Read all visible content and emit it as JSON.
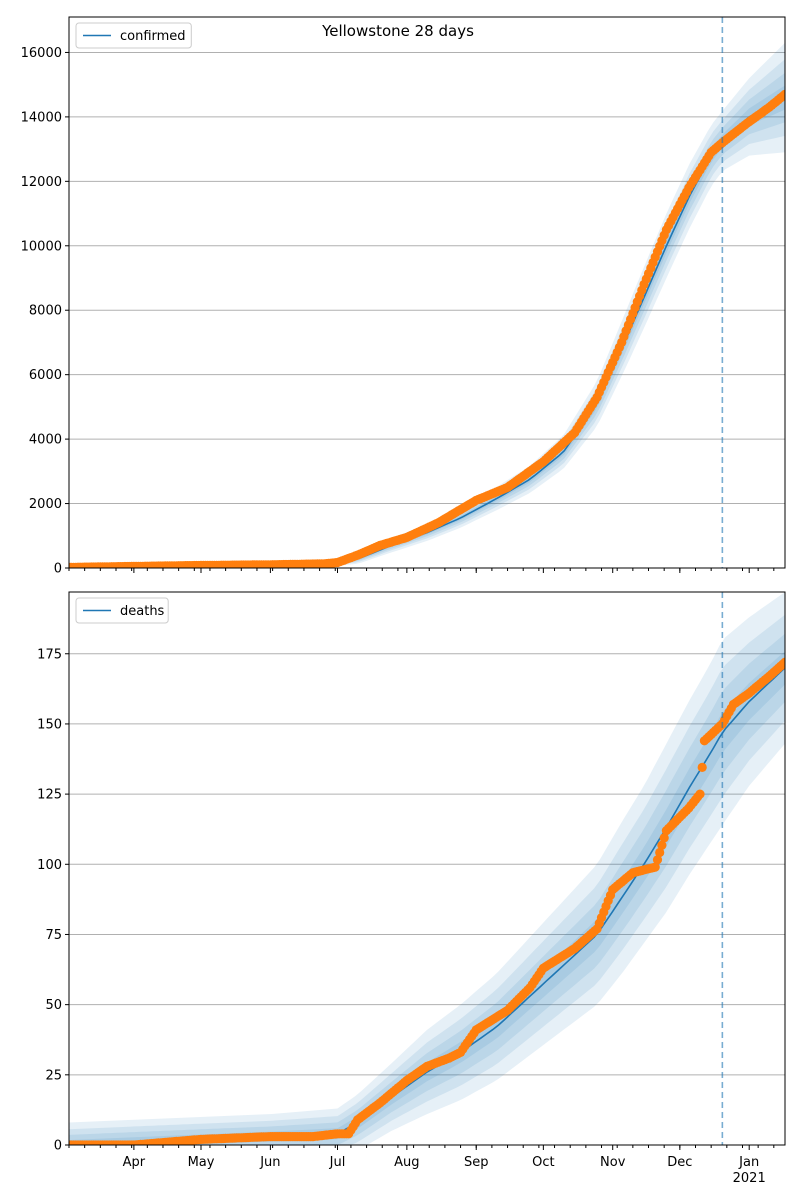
{
  "figure": {
    "title": "Yellowstone 28 days"
  },
  "colors": {
    "model": "#1f77b4",
    "observed": "#ff7f0e",
    "band": "#1f77b4",
    "grid": "#b0b0b0"
  },
  "x_axis": {
    "month_labels": [
      "Apr",
      "May",
      "Jun",
      "Jul",
      "Aug",
      "Sep",
      "Oct",
      "Nov",
      "Dec",
      "Jan"
    ],
    "year_label": "2021"
  },
  "chart_data": [
    {
      "type": "line",
      "title": "Yellowstone 28 days",
      "legend": {
        "label": "confirmed",
        "placement": "upper-left"
      },
      "grid": true,
      "xlim": [
        "2020-03-03",
        "2021-01-17"
      ],
      "ylim": [
        0,
        17100
      ],
      "yticks": [
        0,
        2000,
        4000,
        6000,
        8000,
        10000,
        12000,
        14000,
        16000
      ],
      "forecast_start": "2020-12-20",
      "model_series": {
        "name": "confirmed",
        "x": [
          "2020-03-03",
          "2020-04-01",
          "2020-05-01",
          "2020-06-01",
          "2020-06-25",
          "2020-07-10",
          "2020-07-25",
          "2020-08-10",
          "2020-08-25",
          "2020-09-10",
          "2020-09-25",
          "2020-10-10",
          "2020-10-25",
          "2020-11-05",
          "2020-11-15",
          "2020-11-25",
          "2020-12-05",
          "2020-12-15",
          "2020-12-20",
          "2021-01-01",
          "2021-01-17"
        ],
        "y": [
          10,
          40,
          80,
          100,
          130,
          280,
          700,
          1100,
          1550,
          2150,
          2750,
          3600,
          5100,
          6800,
          8400,
          10000,
          11500,
          12800,
          13250,
          14000,
          14600
        ],
        "band_width": [
          50,
          60,
          70,
          80,
          100,
          150,
          220,
          260,
          300,
          360,
          420,
          520,
          700,
          850,
          950,
          1000,
          1000,
          950,
          930,
          1200,
          1700
        ]
      },
      "observed": {
        "x": [
          "2020-03-03",
          "2020-04-01",
          "2020-05-01",
          "2020-06-01",
          "2020-06-25",
          "2020-07-01",
          "2020-07-10",
          "2020-07-20",
          "2020-08-01",
          "2020-08-15",
          "2020-09-01",
          "2020-09-15",
          "2020-10-01",
          "2020-10-15",
          "2020-10-25",
          "2020-11-05",
          "2020-11-15",
          "2020-11-25",
          "2020-12-05",
          "2020-12-15",
          "2020-12-20",
          "2020-12-31",
          "2021-01-10",
          "2021-01-17"
        ],
        "y": [
          20,
          50,
          80,
          100,
          130,
          170,
          400,
          700,
          950,
          1400,
          2100,
          2500,
          3300,
          4200,
          5300,
          7000,
          8800,
          10500,
          11800,
          12900,
          13200,
          13800,
          14300,
          14700
        ]
      }
    },
    {
      "type": "line",
      "title": "",
      "legend": {
        "label": "deaths",
        "placement": "upper-left"
      },
      "grid": true,
      "xlim": [
        "2020-03-03",
        "2021-01-17"
      ],
      "ylim": [
        0,
        197
      ],
      "yticks": [
        0,
        25,
        50,
        75,
        100,
        125,
        150,
        175
      ],
      "forecast_start": "2020-12-20",
      "model_series": {
        "name": "deaths",
        "x": [
          "2020-03-03",
          "2020-04-01",
          "2020-05-01",
          "2020-06-01",
          "2020-07-01",
          "2020-07-10",
          "2020-07-25",
          "2020-08-10",
          "2020-08-25",
          "2020-09-10",
          "2020-09-25",
          "2020-10-10",
          "2020-10-25",
          "2020-11-05",
          "2020-11-15",
          "2020-11-25",
          "2020-12-05",
          "2020-12-15",
          "2020-12-20",
          "2021-01-01",
          "2021-01-17"
        ],
        "y": [
          0,
          1,
          2,
          3,
          4,
          8,
          17,
          26,
          33,
          42,
          53,
          64,
          75,
          88,
          100,
          113,
          127,
          140,
          147,
          158,
          170
        ],
        "band_width": [
          8,
          8,
          8,
          8,
          9,
          10,
          12,
          15,
          17,
          19,
          21,
          23,
          25,
          27,
          28,
          30,
          31,
          32,
          33,
          30,
          27
        ]
      },
      "observed": {
        "x": [
          "2020-03-03",
          "2020-04-01",
          "2020-05-01",
          "2020-06-01",
          "2020-06-20",
          "2020-07-01",
          "2020-07-06",
          "2020-07-10",
          "2020-07-20",
          "2020-08-01",
          "2020-08-10",
          "2020-08-20",
          "2020-08-25",
          "2020-09-01",
          "2020-09-15",
          "2020-09-25",
          "2020-10-01",
          "2020-10-15",
          "2020-10-25",
          "2020-11-01",
          "2020-11-10",
          "2020-11-20",
          "2020-11-25",
          "2020-12-05",
          "2020-12-10",
          "2020-12-12",
          "2020-12-20",
          "2020-12-25",
          "2021-01-01",
          "2021-01-10",
          "2021-01-17"
        ],
        "y": [
          0,
          0,
          2,
          3,
          3,
          4,
          4,
          9,
          15,
          23,
          28,
          31,
          33,
          41,
          48,
          56,
          63,
          70,
          77,
          91,
          97,
          99,
          112,
          120,
          125,
          144,
          150,
          157,
          161,
          167,
          172
        ]
      }
    }
  ]
}
